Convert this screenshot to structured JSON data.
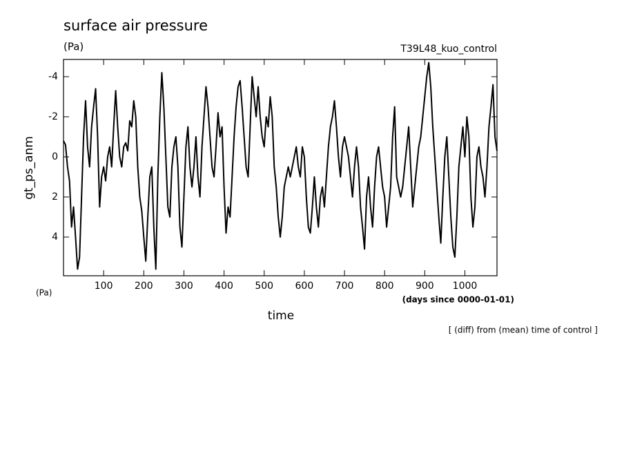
{
  "chart_data": {
    "type": "line",
    "title": "surface air pressure",
    "units": "(Pa)",
    "experiment": "T39L48_kuo_control",
    "ylabel": "gt_ps_anm",
    "yunits": "(Pa)",
    "xlabel": "time",
    "xunits": "(days since 0000-01-01)",
    "note": "[ (diff) from (mean) time of control ]",
    "xlim": [
      0,
      1080
    ],
    "ylim": [
      5.93,
      -4.86
    ],
    "xticks": [
      100,
      200,
      300,
      400,
      500,
      600,
      700,
      800,
      900,
      1000
    ],
    "yticks": [
      -4,
      -2,
      0,
      2,
      4
    ],
    "x": [
      0,
      5,
      10,
      15,
      20,
      25,
      30,
      35,
      40,
      45,
      50,
      55,
      60,
      65,
      70,
      75,
      80,
      85,
      90,
      95,
      100,
      105,
      110,
      115,
      120,
      125,
      130,
      135,
      140,
      145,
      150,
      155,
      160,
      165,
      170,
      175,
      180,
      185,
      190,
      195,
      200,
      205,
      210,
      215,
      220,
      225,
      230,
      235,
      240,
      245,
      250,
      255,
      260,
      265,
      270,
      275,
      280,
      285,
      290,
      295,
      300,
      305,
      310,
      315,
      320,
      325,
      330,
      335,
      340,
      345,
      350,
      355,
      360,
      365,
      370,
      375,
      380,
      385,
      390,
      395,
      400,
      405,
      410,
      415,
      420,
      425,
      430,
      435,
      440,
      445,
      450,
      455,
      460,
      465,
      470,
      475,
      480,
      485,
      490,
      495,
      500,
      505,
      510,
      515,
      520,
      525,
      530,
      535,
      540,
      545,
      550,
      555,
      560,
      565,
      570,
      575,
      580,
      585,
      590,
      595,
      600,
      605,
      610,
      615,
      620,
      625,
      630,
      635,
      640,
      645,
      650,
      655,
      660,
      665,
      670,
      675,
      680,
      685,
      690,
      695,
      700,
      705,
      710,
      715,
      720,
      725,
      730,
      735,
      740,
      745,
      750,
      755,
      760,
      765,
      770,
      775,
      780,
      785,
      790,
      795,
      800,
      805,
      810,
      815,
      820,
      825,
      830,
      835,
      840,
      845,
      850,
      855,
      860,
      865,
      870,
      875,
      880,
      885,
      890,
      895,
      900,
      905,
      910,
      915,
      920,
      925,
      930,
      935,
      940,
      945,
      950,
      955,
      960,
      965,
      970,
      975,
      980,
      985,
      990,
      995,
      1000,
      1005,
      1010,
      1015,
      1020,
      1025,
      1030,
      1035,
      1040,
      1045,
      1050,
      1055,
      1060,
      1065,
      1070,
      1075,
      1080
    ],
    "series": [
      {
        "color": "#000000",
        "values": [
          -0.8,
          -0.6,
          0.5,
          1.2,
          3.5,
          2.5,
          4.0,
          5.6,
          5.0,
          2.0,
          -1.0,
          -2.8,
          -0.5,
          0.5,
          -1.5,
          -2.5,
          -3.4,
          -1.0,
          2.5,
          1.0,
          0.5,
          1.2,
          0.0,
          -0.5,
          0.5,
          -1.5,
          -3.3,
          -1.5,
          0.0,
          0.5,
          -0.5,
          -0.7,
          -0.3,
          -1.8,
          -1.5,
          -2.8,
          -2.0,
          0.5,
          2.0,
          2.7,
          4.0,
          5.2,
          3.0,
          1.0,
          0.5,
          3.5,
          5.6,
          1.0,
          -2.0,
          -4.2,
          -2.5,
          0.0,
          2.5,
          3.0,
          0.5,
          -0.5,
          -1.0,
          0.5,
          3.5,
          4.5,
          2.0,
          -0.5,
          -1.5,
          0.5,
          1.5,
          0.5,
          -1.0,
          1.0,
          2.0,
          -0.5,
          -2.0,
          -3.5,
          -2.5,
          -1.0,
          0.5,
          1.0,
          -0.5,
          -2.2,
          -1.0,
          -1.5,
          1.5,
          3.8,
          2.5,
          3.0,
          1.0,
          -1.0,
          -2.5,
          -3.5,
          -3.8,
          -2.5,
          -1.0,
          0.5,
          1.0,
          -1.5,
          -4.0,
          -3.0,
          -2.0,
          -3.5,
          -2.0,
          -1.0,
          -0.5,
          -2.0,
          -1.5,
          -3.0,
          -2.0,
          0.5,
          1.5,
          3.0,
          4.0,
          3.0,
          1.5,
          1.0,
          0.5,
          1.0,
          0.5,
          0.0,
          -0.5,
          0.5,
          1.0,
          -0.5,
          0.0,
          2.0,
          3.5,
          3.8,
          2.5,
          1.0,
          2.5,
          3.5,
          2.0,
          1.5,
          2.5,
          1.0,
          -0.5,
          -1.5,
          -2.0,
          -2.8,
          -1.5,
          0.0,
          1.0,
          -0.5,
          -1.0,
          -0.5,
          0.0,
          1.0,
          2.0,
          0.5,
          -0.5,
          0.5,
          2.5,
          3.5,
          4.6,
          2.0,
          1.0,
          2.5,
          3.5,
          1.5,
          0.0,
          -0.5,
          0.5,
          1.5,
          2.0,
          3.5,
          2.5,
          1.5,
          -1.0,
          -2.5,
          1.0,
          1.5,
          2.0,
          1.5,
          0.5,
          -0.5,
          -1.5,
          0.5,
          2.5,
          1.5,
          0.5,
          -0.5,
          -1.0,
          -2.0,
          -3.0,
          -4.0,
          -4.7,
          -3.5,
          -1.5,
          0.0,
          1.5,
          3.0,
          4.3,
          2.0,
          0.0,
          -1.0,
          1.0,
          3.0,
          4.5,
          5.0,
          3.0,
          0.5,
          -0.5,
          -1.5,
          0.0,
          -2.0,
          -1.0,
          2.0,
          3.5,
          2.5,
          0.0,
          -0.5,
          0.5,
          1.0,
          2.0,
          0.5,
          -1.5,
          -2.5,
          -3.6,
          -1.0,
          -0.3
        ]
      }
    ]
  }
}
